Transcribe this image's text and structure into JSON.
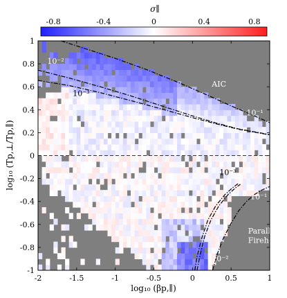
{
  "chart_data": {
    "type": "heatmap",
    "title": "",
    "xlabel": "log₁₀ (βp,∥)",
    "ylabel": "log₁₀ (Tp,⊥/Tp,∥)",
    "xlim": [
      -2,
      1
    ],
    "ylim": [
      -1,
      1
    ],
    "x_ticks": [
      "-2",
      "-1.5",
      "-1",
      "-0.5",
      "0",
      "0.5",
      "1"
    ],
    "y_ticks": [
      "-1",
      "-0.8",
      "-0.6",
      "-0.4",
      "-0.2",
      "0",
      "0.2",
      "0.4",
      "0.6",
      "0.8",
      "1"
    ],
    "grid": false,
    "background_color": "#7f7f7f",
    "colorbar": {
      "label": "σ∥",
      "range": [
        -0.9,
        0.9
      ],
      "ticks": [
        "-0.8",
        "-0.4",
        "0",
        "0.4",
        "0.8"
      ],
      "colors": [
        "#1f1fff",
        "#ffffff",
        "#ff1f1f"
      ]
    },
    "series": [
      {
        "label": "10⁻²",
        "region": "AIC",
        "points": [
          [
            -2.0,
            0.745
          ],
          [
            -1.6,
            0.677
          ],
          [
            -1.2,
            0.601
          ],
          [
            -0.8,
            0.521
          ],
          [
            -0.4,
            0.433
          ],
          [
            0.0,
            0.346
          ],
          [
            0.3,
            0.285
          ],
          [
            0.6,
            0.232
          ],
          [
            1.0,
            0.183
          ]
        ]
      },
      {
        "label": "10⁻³",
        "region": "AIC",
        "points": [
          [
            -2.0,
            0.655
          ],
          [
            -1.6,
            0.611
          ],
          [
            -1.2,
            0.55
          ],
          [
            -0.8,
            0.48
          ],
          [
            -0.4,
            0.406
          ],
          [
            0.0,
            0.331
          ],
          [
            0.3,
            0.278
          ],
          [
            0.6,
            0.229
          ],
          [
            1.0,
            0.18
          ]
        ]
      },
      {
        "label": "10⁻¹",
        "region": "AIC",
        "points": [
          [
            -1.7,
            1.0
          ],
          [
            -1.4,
            0.935
          ],
          [
            -1.0,
            0.848
          ],
          [
            -0.6,
            0.751
          ],
          [
            -0.2,
            0.642
          ],
          [
            0.2,
            0.525
          ],
          [
            0.5,
            0.433
          ],
          [
            0.8,
            0.346
          ],
          [
            1.0,
            0.287
          ]
        ]
      },
      {
        "label": "10⁻³",
        "region": "Parallel Firehose",
        "points": [
          [
            0.03,
            -1.0
          ],
          [
            0.06,
            -0.88
          ],
          [
            0.12,
            -0.72
          ],
          [
            0.2,
            -0.56
          ],
          [
            0.3,
            -0.44
          ],
          [
            0.42,
            -0.34
          ],
          [
            0.52,
            -0.28
          ],
          [
            0.6,
            -0.24
          ]
        ]
      },
      {
        "label": "10⁻²",
        "region": "Parallel Firehose",
        "points": [
          [
            0.06,
            -1.0
          ],
          [
            0.1,
            -0.86
          ],
          [
            0.16,
            -0.7
          ],
          [
            0.24,
            -0.56
          ],
          [
            0.34,
            -0.44
          ],
          [
            0.46,
            -0.34
          ],
          [
            0.56,
            -0.28
          ],
          [
            0.62,
            -0.25
          ]
        ]
      },
      {
        "label": "10⁻¹",
        "region": "Parallel Firehose",
        "points": [
          [
            0.26,
            -1.0
          ],
          [
            0.32,
            -0.86
          ],
          [
            0.4,
            -0.72
          ],
          [
            0.5,
            -0.59
          ],
          [
            0.6,
            -0.48
          ],
          [
            0.7,
            -0.4
          ],
          [
            0.8,
            -0.34
          ],
          [
            0.9,
            -0.3
          ],
          [
            1.0,
            -0.27
          ]
        ]
      }
    ],
    "reference_line": {
      "y": 0,
      "style": "dashed"
    },
    "annotations": [
      {
        "text": "AIC",
        "x": 0.25,
        "y": 0.6
      },
      {
        "text": "10⁻¹",
        "x": 0.7,
        "y": 0.35
      },
      {
        "text": "10⁻²",
        "x": -1.88,
        "y": 0.8
      },
      {
        "text": "10⁻³",
        "x": -1.55,
        "y": 0.52
      },
      {
        "text": "10⁻³",
        "x": 0.35,
        "y": -0.17
      },
      {
        "text": "10⁻¹",
        "x": 0.75,
        "y": -0.38
      },
      {
        "text": "Parallel",
        "x": 0.72,
        "y": -0.68
      },
      {
        "text": "Firehose",
        "x": 0.72,
        "y": -0.76
      },
      {
        "text": "10⁻²",
        "x": 0.25,
        "y": -0.92
      }
    ]
  }
}
